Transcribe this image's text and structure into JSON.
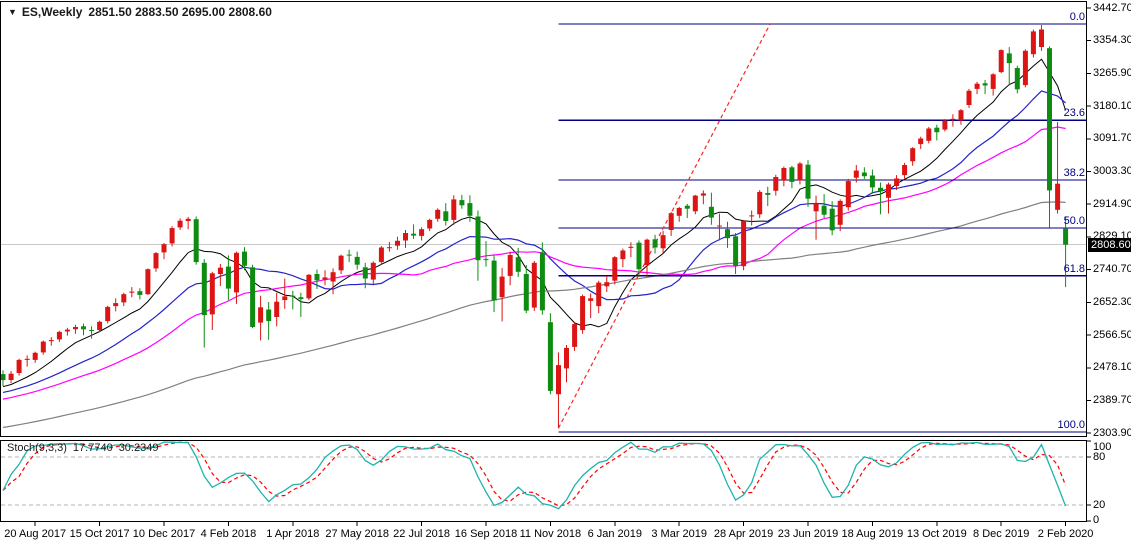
{
  "header": {
    "marker": "▼",
    "symbol": "ES,Weekly",
    "ohlc": "2851.50 2883.50 2695.00 2808.60",
    "open": "2851.50",
    "high": "2883.50",
    "low": "2695.00",
    "close": "2808.60"
  },
  "chart_data": {
    "type": "candlestick",
    "title": "ES,Weekly",
    "timeframe": "Weekly",
    "legend_position": "top-left",
    "grid": false,
    "price_axis": {
      "labels": [
        "3442.70",
        "3354.30",
        "3265.90",
        "3180.10",
        "3091.70",
        "3003.30",
        "2914.90",
        "2829.10",
        "2740.70",
        "2652.30",
        "2566.50",
        "2478.10",
        "2389.70",
        "2303.90"
      ],
      "top_value": 3442.7,
      "bottom_value": 2303.9
    },
    "time_axis": {
      "labels": [
        "20 Aug 2017",
        "15 Oct 2017",
        "10 Dec 2017",
        "4 Feb 2018",
        "1 Apr 2018",
        "27 May 2018",
        "22 Jul 2018",
        "16 Sep 2018",
        "11 Nov 2018",
        "6 Jan 2019",
        "3 Mar 2019",
        "28 Apr 2019",
        "23 Jun 2019",
        "18 Aug 2019",
        "13 Oct 2019",
        "8 Dec 2019",
        "2 Feb 2020"
      ]
    },
    "price_line": {
      "label": "2808.60",
      "price": 2808.6
    },
    "fib": {
      "start_index": 69,
      "color": "#000080",
      "levels": [
        {
          "label": "0.0",
          "price": 3400
        },
        {
          "label": "23.6",
          "price": 3142
        },
        {
          "label": "38.2",
          "price": 2982
        },
        {
          "label": "50.0",
          "price": 2853.5
        },
        {
          "label": "61.8",
          "price": 2725
        },
        {
          "label": "100.0",
          "price": 2307
        }
      ]
    },
    "trendline": {
      "from_index": 69,
      "from_price": 2317,
      "to_index": 95.3,
      "to_price": 3400,
      "style": "dashed",
      "color": "#ff2222"
    },
    "moving_averages": [
      {
        "period": 8,
        "color": "#000000",
        "width": 1
      },
      {
        "period": 17,
        "color": "#2323cc",
        "width": 1.2
      },
      {
        "period": 28,
        "color": "#ff00ff",
        "width": 1.2
      },
      {
        "period": 75,
        "color": "#808080",
        "width": 1.2
      }
    ],
    "colors": {
      "up": "#dd1414",
      "down": "#0e8c12",
      "fib": "#000080",
      "trend": "#ff2222",
      "price_line": "#c8c8c8",
      "stoch_main": "#1fb3ac",
      "stoch_signal": "#ff0000",
      "level_dash": "#b3b3b3",
      "badge_bg": "#000000",
      "badge_fg": "#ffffff"
    },
    "stochastic": {
      "name": "Stoch(9,3,3)",
      "main_value": "17.7740",
      "signal_value": "30.2349",
      "params": {
        "k": 9,
        "smoothing": 3,
        "d": 3
      },
      "axis_labels": [
        "100",
        "80",
        "20",
        "0"
      ],
      "axis_values": [
        100,
        80,
        20,
        0
      ],
      "dashed_levels": [
        80,
        20
      ]
    },
    "candles": [
      [
        2462,
        2472,
        2430,
        2446
      ],
      [
        2446,
        2470,
        2438,
        2463
      ],
      [
        2465,
        2503,
        2458,
        2500
      ],
      [
        2500,
        2512,
        2482,
        2503
      ],
      [
        2500,
        2522,
        2492,
        2519
      ],
      [
        2520,
        2552,
        2514,
        2549
      ],
      [
        2550,
        2561,
        2538,
        2553
      ],
      [
        2555,
        2578,
        2548,
        2575
      ],
      [
        2576,
        2586,
        2565,
        2581
      ],
      [
        2582,
        2594,
        2570,
        2588
      ],
      [
        2590,
        2597,
        2566,
        2582
      ],
      [
        2580,
        2590,
        2557,
        2579
      ],
      [
        2580,
        2605,
        2574,
        2602
      ],
      [
        2604,
        2645,
        2598,
        2642
      ],
      [
        2644,
        2665,
        2630,
        2652
      ],
      [
        2654,
        2680,
        2644,
        2676
      ],
      [
        2680,
        2695,
        2668,
        2683
      ],
      [
        2684,
        2692,
        2662,
        2674
      ],
      [
        2676,
        2745,
        2674,
        2743
      ],
      [
        2745,
        2789,
        2736,
        2786
      ],
      [
        2788,
        2813,
        2770,
        2810
      ],
      [
        2812,
        2858,
        2804,
        2853
      ],
      [
        2855,
        2879,
        2848,
        2873
      ],
      [
        2872,
        2883,
        2850,
        2878
      ],
      [
        2877,
        2884,
        2755,
        2762
      ],
      [
        2760,
        2770,
        2533,
        2620
      ],
      [
        2622,
        2736,
        2580,
        2732
      ],
      [
        2730,
        2757,
        2698,
        2747
      ],
      [
        2750,
        2780,
        2660,
        2691
      ],
      [
        2681,
        2790,
        2650,
        2787
      ],
      [
        2790,
        2802,
        2740,
        2752
      ],
      [
        2748,
        2755,
        2585,
        2588
      ],
      [
        2600,
        2672,
        2552,
        2641
      ],
      [
        2635,
        2655,
        2554,
        2604
      ],
      [
        2615,
        2680,
        2590,
        2656
      ],
      [
        2660,
        2718,
        2637,
        2670
      ],
      [
        2672,
        2685,
        2635,
        2670
      ],
      [
        2668,
        2680,
        2615,
        2663
      ],
      [
        2665,
        2730,
        2660,
        2728
      ],
      [
        2730,
        2742,
        2690,
        2713
      ],
      [
        2715,
        2740,
        2700,
        2721
      ],
      [
        2710,
        2745,
        2676,
        2735
      ],
      [
        2740,
        2782,
        2730,
        2779
      ],
      [
        2782,
        2795,
        2762,
        2780
      ],
      [
        2776,
        2790,
        2742,
        2755
      ],
      [
        2748,
        2760,
        2692,
        2718
      ],
      [
        2715,
        2764,
        2700,
        2760
      ],
      [
        2762,
        2805,
        2755,
        2801
      ],
      [
        2800,
        2816,
        2790,
        2802
      ],
      [
        2806,
        2830,
        2795,
        2819
      ],
      [
        2820,
        2848,
        2800,
        2840
      ],
      [
        2838,
        2863,
        2824,
        2833
      ],
      [
        2832,
        2855,
        2820,
        2850
      ],
      [
        2852,
        2878,
        2845,
        2875
      ],
      [
        2878,
        2906,
        2870,
        2902
      ],
      [
        2898,
        2920,
        2860,
        2872
      ],
      [
        2875,
        2941,
        2862,
        2930
      ],
      [
        2928,
        2942,
        2905,
        2914
      ],
      [
        2920,
        2941,
        2870,
        2886
      ],
      [
        2884,
        2900,
        2712,
        2767
      ],
      [
        2770,
        2818,
        2750,
        2768
      ],
      [
        2766,
        2780,
        2628,
        2659
      ],
      [
        2668,
        2746,
        2603,
        2723
      ],
      [
        2725,
        2790,
        2700,
        2781
      ],
      [
        2775,
        2800,
        2722,
        2736
      ],
      [
        2730,
        2754,
        2625,
        2632
      ],
      [
        2640,
        2765,
        2631,
        2760
      ],
      [
        2788,
        2815,
        2621,
        2633
      ],
      [
        2601,
        2625,
        2408,
        2417
      ],
      [
        2408,
        2520,
        2317,
        2486
      ],
      [
        2477,
        2540,
        2440,
        2532
      ],
      [
        2535,
        2600,
        2524,
        2596
      ],
      [
        2580,
        2675,
        2570,
        2671
      ],
      [
        2658,
        2678,
        2612,
        2665
      ],
      [
        2644,
        2712,
        2625,
        2707
      ],
      [
        2697,
        2725,
        2682,
        2708
      ],
      [
        2712,
        2778,
        2702,
        2775
      ],
      [
        2770,
        2798,
        2748,
        2793
      ],
      [
        2800,
        2815,
        2775,
        2803
      ],
      [
        2814,
        2820,
        2722,
        2743
      ],
      [
        2754,
        2825,
        2722,
        2822
      ],
      [
        2823,
        2835,
        2785,
        2801
      ],
      [
        2799,
        2846,
        2785,
        2834
      ],
      [
        2848,
        2896,
        2832,
        2893
      ],
      [
        2886,
        2910,
        2870,
        2907
      ],
      [
        2913,
        2918,
        2880,
        2905
      ],
      [
        2898,
        2942,
        2890,
        2940
      ],
      [
        2940,
        2954,
        2917,
        2946
      ],
      [
        2910,
        2948,
        2862,
        2881
      ],
      [
        2858,
        2892,
        2820,
        2860
      ],
      [
        2850,
        2870,
        2800,
        2826
      ],
      [
        2831,
        2840,
        2730,
        2752
      ],
      [
        2751,
        2875,
        2740,
        2873
      ],
      [
        2886,
        2900,
        2860,
        2887
      ],
      [
        2890,
        2955,
        2880,
        2950
      ],
      [
        2947,
        2964,
        2912,
        2942
      ],
      [
        2953,
        2996,
        2940,
        2990
      ],
      [
        2980,
        3018,
        2965,
        3014
      ],
      [
        3016,
        3020,
        2960,
        2977
      ],
      [
        2981,
        3030,
        2970,
        3026
      ],
      [
        3023,
        3035,
        2910,
        2932
      ],
      [
        2898,
        2940,
        2822,
        2919
      ],
      [
        2913,
        2944,
        2880,
        2889
      ],
      [
        2905,
        2925,
        2834,
        2847
      ],
      [
        2862,
        2930,
        2845,
        2926
      ],
      [
        2909,
        2985,
        2900,
        2979
      ],
      [
        2988,
        3022,
        2975,
        3007
      ],
      [
        3002,
        3016,
        2985,
        2992
      ],
      [
        2994,
        3010,
        2945,
        2962
      ],
      [
        2961,
        2975,
        2890,
        2952
      ],
      [
        2934,
        2975,
        2892,
        2970
      ],
      [
        2966,
        2995,
        2955,
        2986
      ],
      [
        2995,
        3028,
        2985,
        3022
      ],
      [
        3032,
        3070,
        3020,
        3067
      ],
      [
        3078,
        3098,
        3065,
        3093
      ],
      [
        3087,
        3124,
        3080,
        3120
      ],
      [
        3122,
        3130,
        3088,
        3110
      ],
      [
        3117,
        3145,
        3112,
        3141
      ],
      [
        3144,
        3158,
        3125,
        3146
      ],
      [
        3142,
        3172,
        3130,
        3169
      ],
      [
        3183,
        3226,
        3175,
        3221
      ],
      [
        3226,
        3245,
        3212,
        3240
      ],
      [
        3241,
        3250,
        3212,
        3235
      ],
      [
        3226,
        3268,
        3208,
        3265
      ],
      [
        3271,
        3332,
        3268,
        3330
      ],
      [
        3321,
        3338,
        3235,
        3295
      ],
      [
        3282,
        3288,
        3214,
        3225
      ],
      [
        3236,
        3332,
        3230,
        3328
      ],
      [
        3319,
        3385,
        3310,
        3380
      ],
      [
        3338,
        3397,
        3328,
        3385
      ],
      [
        3335,
        3340,
        2855,
        2954
      ],
      [
        2902,
        3137,
        2892,
        2972
      ],
      [
        2851.5,
        2883.5,
        2695,
        2808.6
      ]
    ]
  }
}
